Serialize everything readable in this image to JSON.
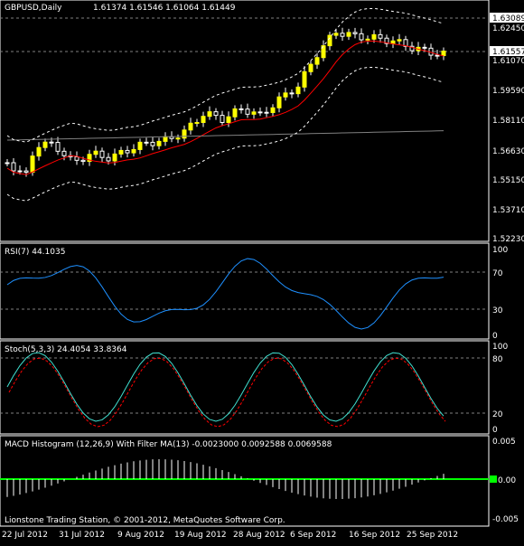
{
  "header": {
    "symbol": "GBPUSD,Daily",
    "ohlc": "1.61374 1.61546 1.61064 1.61449"
  },
  "price_axis": [
    "1.62450",
    "1.61070",
    "1.59590",
    "1.58110",
    "1.56630",
    "1.55150",
    "1.53710",
    "1.52230"
  ],
  "price_badges": [
    "1.63089",
    "1.61557"
  ],
  "rsi": {
    "label": "RSI(7) 44.1035",
    "ticks": [
      "100",
      "70",
      "30",
      "0"
    ]
  },
  "stoch": {
    "label": "Stoch(5,3,3) 24.4054 33.8364",
    "ticks": [
      "100",
      "80",
      "20",
      "0"
    ]
  },
  "macd": {
    "label": "MACD Histogram (12,26,9) With Filter MA(13) -0.0023000 0.0092588 0.0069588",
    "ticks": [
      "0.005",
      "0.00",
      "-0.005"
    ]
  },
  "footer": "Lionstone Trading Station, © 2001-2012, MetaQuotes Software Corp.",
  "date_axis": [
    "22 Jul 2012",
    "31 Jul 2012",
    "9 Aug 2012",
    "19 Aug 2012",
    "28 Aug 2012",
    "6 Sep 2012",
    "16 Sep 2012",
    "25 Sep 2012"
  ],
  "colors": {
    "bull": "#ffff00",
    "bear": "#000000",
    "ma_red": "#ff0000",
    "ma_gray": "#808080",
    "bands": "#ffffff",
    "rsi_line": "#1e90ff",
    "stoch_main": "#40e0d0",
    "stoch_signal": "#ff0000",
    "macd_hist": "#ffffff",
    "macd_zero": "#00ff00",
    "badge_bg": "#ffffff"
  }
}
